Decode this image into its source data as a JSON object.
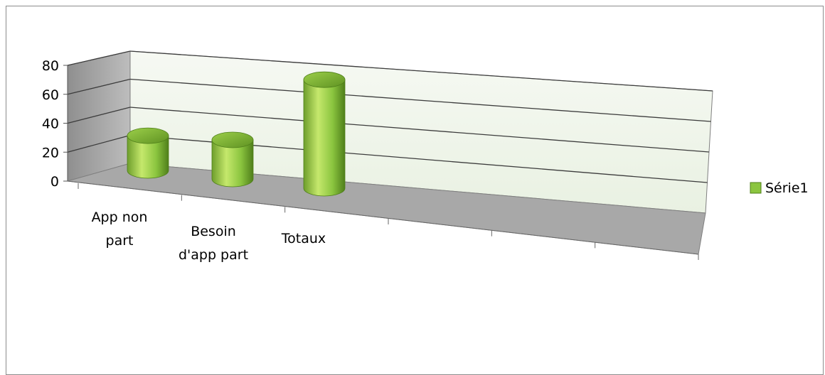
{
  "chart_data": {
    "type": "bar",
    "style": "3d-cylinder",
    "categories": [
      "App non part",
      "Besoin d'app part",
      "Totaux",
      "",
      "",
      ""
    ],
    "series": [
      {
        "name": "Série1",
        "values": [
          24,
          27,
          75,
          null,
          null,
          null
        ]
      }
    ],
    "ylim": [
      0,
      80
    ],
    "yticks": [
      0,
      20,
      40,
      60,
      80
    ],
    "grid": true,
    "legend": "right",
    "colors": {
      "bar_light": "#c5e86c",
      "bar_mid": "#8bc53f",
      "bar_dark": "#4f7f1a",
      "back_wall": "#f2f7ee",
      "side_wall": "#a6a6a6",
      "floor": "#a8a8a8",
      "grid": "#3c3c3c"
    }
  }
}
